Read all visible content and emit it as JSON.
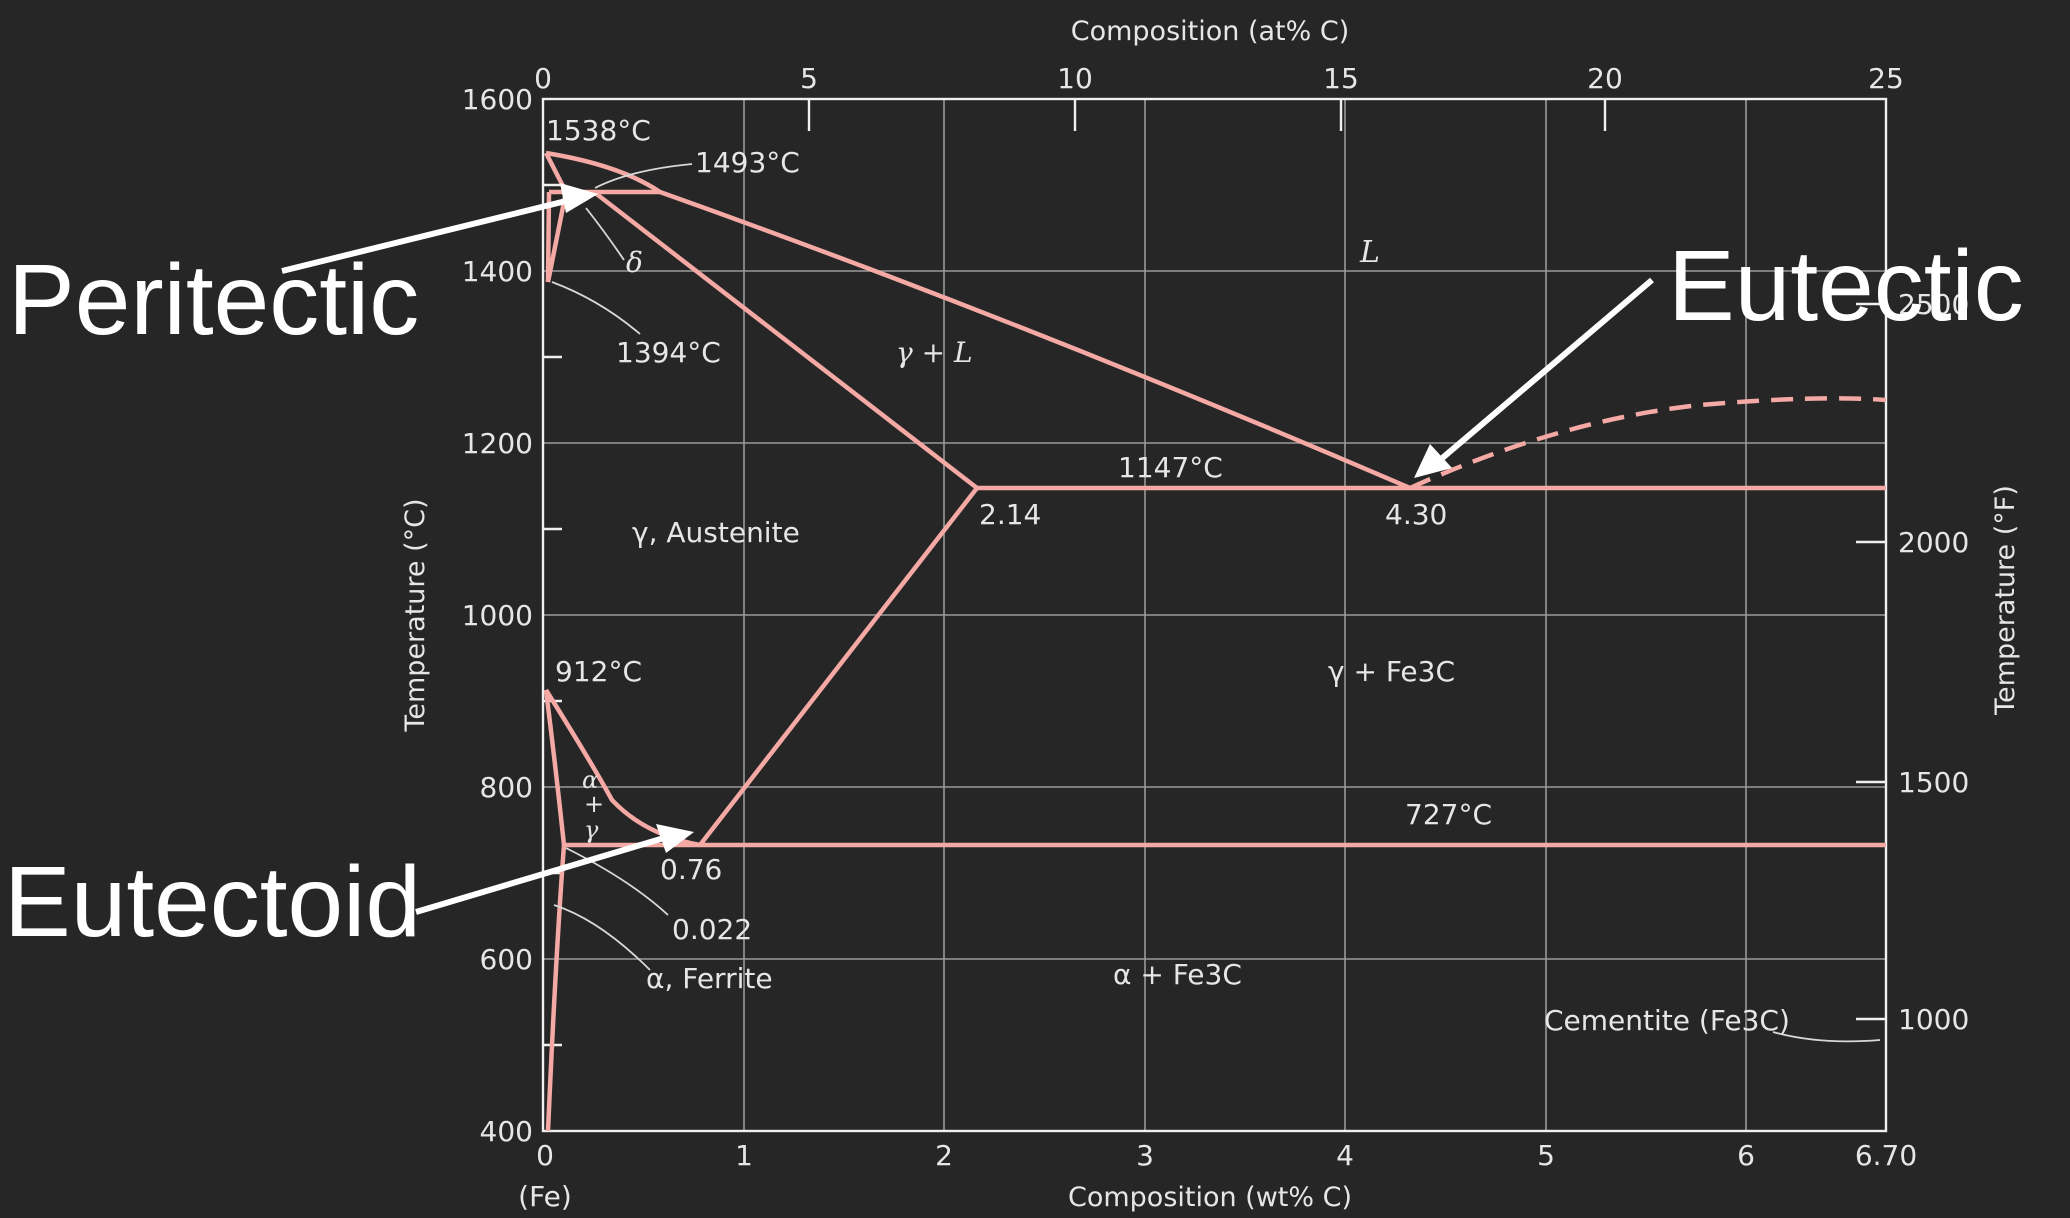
{
  "axes": {
    "top_title": "Composition (at% C)",
    "bottom_title": "Composition (wt% C)",
    "left_title": "Temperature (°C)",
    "right_title": "Temperature (°F)",
    "origin_label": "(Fe)",
    "x_wt_ticks": [
      "0",
      "1",
      "2",
      "3",
      "4",
      "5",
      "6",
      "6.70"
    ],
    "x_at_ticks": [
      "0",
      "5",
      "10",
      "15",
      "20",
      "25"
    ],
    "y_c_ticks": [
      "400",
      "600",
      "800",
      "1000",
      "1200",
      "1400",
      "1600"
    ],
    "y_f_ticks": [
      "1000",
      "1500",
      "2000",
      "2500"
    ]
  },
  "points": {
    "t1538": "1538°C",
    "t1493": "1493°C",
    "t1394": "1394°C",
    "t1147": "1147°C",
    "t912": "912°C",
    "t727": "727°C",
    "c214": "2.14",
    "c430": "4.30",
    "c076": "0.76",
    "c0022": "0.022"
  },
  "regions": {
    "liquid": "L",
    "gamma_l": "γ + L",
    "austenite": "γ, Austenite",
    "gamma_fe3c": "γ + Fe3C",
    "alpha_fe3c": "α + Fe3C",
    "ferrite": "α, Ferrite",
    "delta": "δ",
    "alpha_plus_gamma": [
      "α",
      "+",
      "γ"
    ],
    "cementite": "Cementite (Fe3C)"
  },
  "callouts": {
    "peritectic": "Peritectic",
    "eutectic": "Eutectic",
    "eutectoid": "Eutectoid"
  },
  "colors": {
    "background": "#262626",
    "phase_lines": "#f4a9a5",
    "text": "#e6e6e6",
    "callouts": "#ffffff"
  }
}
